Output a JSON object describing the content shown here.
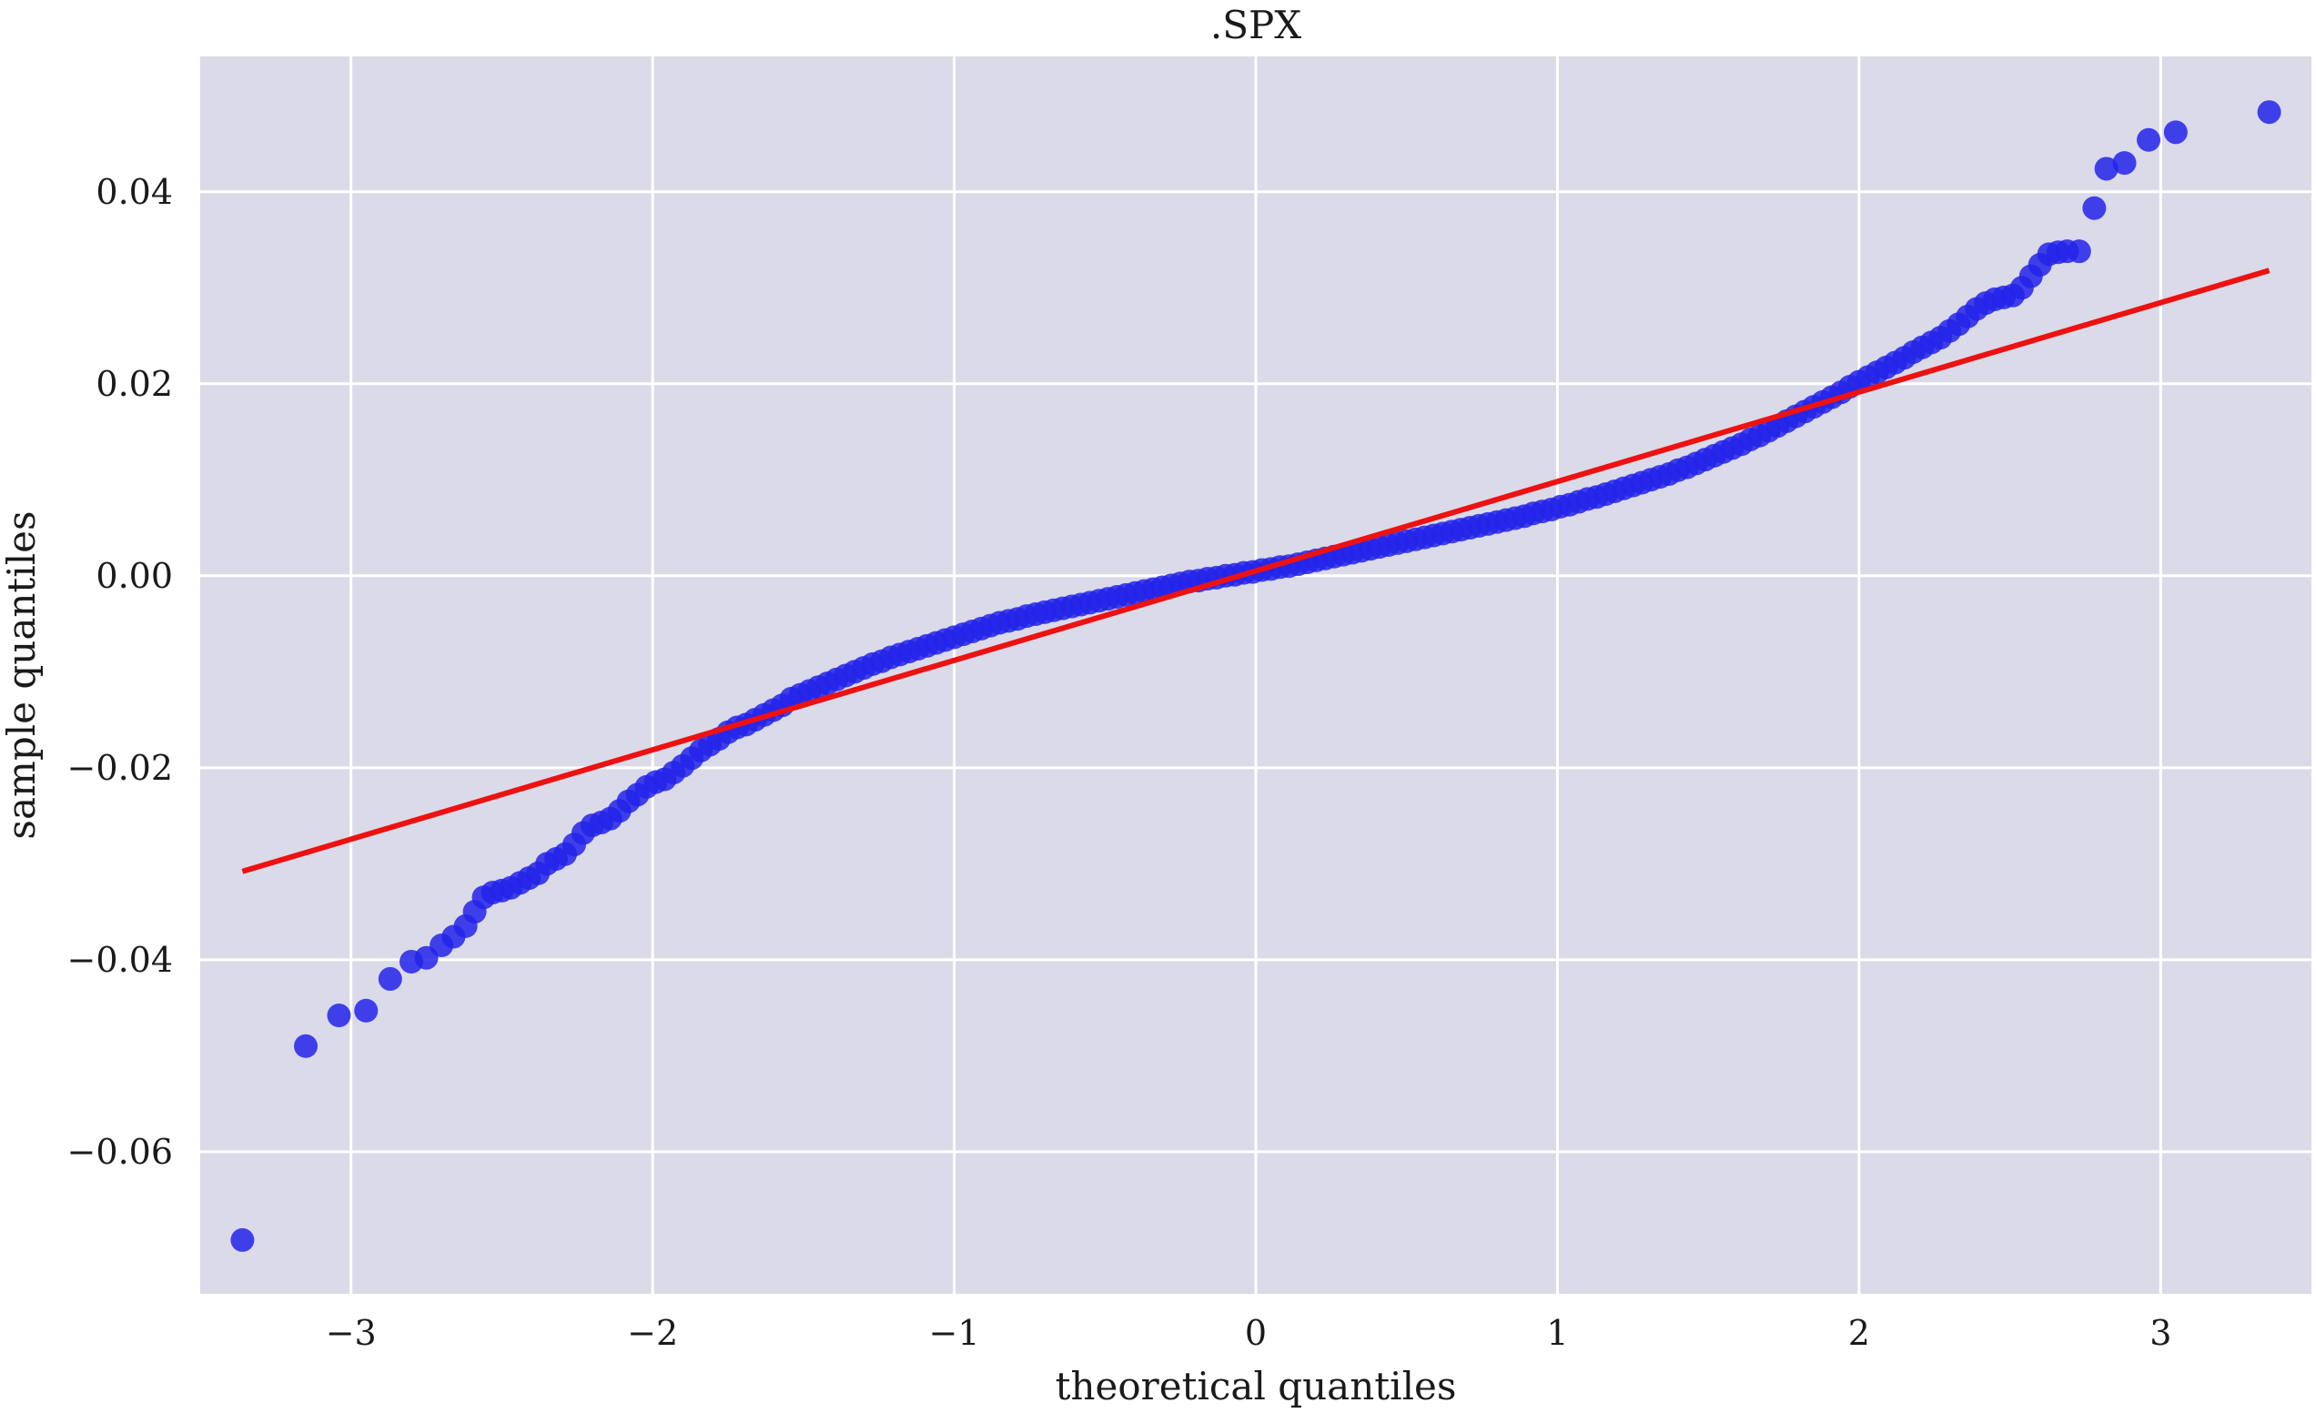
{
  "chart_data": {
    "type": "scatter",
    "title": ".SPX",
    "xlabel": "theoretical quantiles",
    "ylabel": "sample quantiles",
    "xlim": [
      -3.5,
      3.5
    ],
    "ylim": [
      -0.0748,
      0.0541
    ],
    "grid": true,
    "x_ticks": [
      -3,
      -2,
      -1,
      0,
      1,
      2,
      3
    ],
    "x_tick_labels": [
      "−3",
      "−2",
      "−1",
      "0",
      "1",
      "2",
      "3"
    ],
    "y_ticks": [
      -0.06,
      -0.04,
      -0.02,
      0.0,
      0.02,
      0.04
    ],
    "y_tick_labels": [
      "−0.06",
      "−0.04",
      "−0.02",
      "0.00",
      "0.02",
      "0.04"
    ],
    "colors": {
      "background": "#dadae8",
      "grid": "#ffffff",
      "points": "#2323ea",
      "fit_line": "#ee1111"
    },
    "series": [
      {
        "type": "scatter",
        "points": [
          [
            -3.36,
            -0.0692
          ],
          [
            -3.15,
            -0.049
          ],
          [
            -3.04,
            -0.0458
          ],
          [
            -2.95,
            -0.0453
          ],
          [
            -2.87,
            -0.042
          ],
          [
            -2.8,
            -0.0402
          ],
          [
            -2.75,
            -0.0398
          ],
          [
            -2.7,
            -0.0385
          ],
          [
            -2.66,
            -0.0376
          ],
          [
            -2.62,
            -0.0365
          ],
          [
            -2.59,
            -0.035
          ],
          [
            -2.56,
            -0.0335
          ],
          [
            -2.53,
            -0.033
          ],
          [
            -2.5,
            -0.0328
          ],
          [
            -2.47,
            -0.0325
          ],
          [
            -2.44,
            -0.032
          ],
          [
            -2.41,
            -0.0315
          ],
          [
            -2.38,
            -0.031
          ],
          [
            -2.35,
            -0.03
          ],
          [
            -2.32,
            -0.0295
          ],
          [
            -2.29,
            -0.029
          ],
          [
            -2.26,
            -0.028
          ],
          [
            -2.23,
            -0.0268
          ],
          [
            -2.2,
            -0.026
          ],
          [
            -2.17,
            -0.0257
          ],
          [
            -2.14,
            -0.0253
          ],
          [
            -2.11,
            -0.0245
          ],
          [
            -2.08,
            -0.0235
          ],
          [
            -2.05,
            -0.0228
          ],
          [
            -2.02,
            -0.022
          ],
          [
            -1.99,
            -0.0215
          ],
          [
            -1.96,
            -0.0212
          ],
          [
            -1.93,
            -0.0205
          ],
          [
            -1.9,
            -0.0198
          ],
          [
            -1.87,
            -0.019
          ],
          [
            -1.84,
            -0.0182
          ],
          [
            -1.81,
            -0.0176
          ],
          [
            -1.78,
            -0.017
          ],
          [
            -1.75,
            -0.0163
          ],
          [
            -1.72,
            -0.0158
          ],
          [
            -1.69,
            -0.0155
          ],
          [
            -1.66,
            -0.015
          ],
          [
            -1.63,
            -0.0145
          ],
          [
            -1.6,
            -0.014
          ],
          [
            -1.57,
            -0.0135
          ],
          [
            -1.54,
            -0.0128
          ],
          [
            -1.51,
            -0.0124
          ],
          [
            -1.48,
            -0.012
          ],
          [
            -1.45,
            -0.0116
          ],
          [
            -1.42,
            -0.0112
          ],
          [
            -1.39,
            -0.0108
          ],
          [
            -1.36,
            -0.0104
          ],
          [
            -1.33,
            -0.01
          ],
          [
            -1.3,
            -0.0096
          ],
          [
            -1.27,
            -0.0092
          ],
          [
            -1.24,
            -0.0089
          ],
          [
            -1.21,
            -0.0085
          ],
          [
            -1.18,
            -0.0082
          ],
          [
            -1.15,
            -0.0079
          ],
          [
            -1.12,
            -0.0076
          ],
          [
            -1.09,
            -0.0073
          ],
          [
            -1.06,
            -0.007
          ],
          [
            -1.03,
            -0.0067
          ],
          [
            -1.0,
            -0.0064
          ],
          [
            -0.97,
            -0.0061
          ],
          [
            -0.94,
            -0.0058
          ],
          [
            -0.91,
            -0.0055
          ],
          [
            -0.88,
            -0.0052
          ],
          [
            -0.85,
            -0.0049
          ],
          [
            -0.82,
            -0.0047
          ],
          [
            -0.79,
            -0.0045
          ],
          [
            -0.76,
            -0.0042
          ],
          [
            -0.73,
            -0.004
          ],
          [
            -0.7,
            -0.0038
          ],
          [
            -0.67,
            -0.0036
          ],
          [
            -0.64,
            -0.0034
          ],
          [
            -0.61,
            -0.0032
          ],
          [
            -0.58,
            -0.003
          ],
          [
            -0.55,
            -0.0028
          ],
          [
            -0.52,
            -0.0026
          ],
          [
            -0.49,
            -0.0024
          ],
          [
            -0.46,
            -0.0022
          ],
          [
            -0.43,
            -0.002
          ],
          [
            -0.4,
            -0.0018
          ],
          [
            -0.37,
            -0.0016
          ],
          [
            -0.34,
            -0.0014
          ],
          [
            -0.31,
            -0.0012
          ],
          [
            -0.28,
            -0.001
          ],
          [
            -0.25,
            -0.0008
          ],
          [
            -0.22,
            -0.0006
          ],
          [
            -0.19,
            -0.0005
          ],
          [
            -0.16,
            -0.0003
          ],
          [
            -0.13,
            -0.0002
          ],
          [
            -0.1,
            0.0
          ],
          [
            -0.07,
            0.0001
          ],
          [
            -0.04,
            0.0003
          ],
          [
            -0.01,
            0.0004
          ],
          [
            0.02,
            0.0006
          ],
          [
            0.05,
            0.0007
          ],
          [
            0.08,
            0.0009
          ],
          [
            0.11,
            0.001
          ],
          [
            0.14,
            0.0012
          ],
          [
            0.17,
            0.0014
          ],
          [
            0.2,
            0.0016
          ],
          [
            0.23,
            0.0018
          ],
          [
            0.26,
            0.002
          ],
          [
            0.29,
            0.0022
          ],
          [
            0.32,
            0.0024
          ],
          [
            0.35,
            0.0026
          ],
          [
            0.38,
            0.0028
          ],
          [
            0.41,
            0.003
          ],
          [
            0.44,
            0.0032
          ],
          [
            0.47,
            0.0034
          ],
          [
            0.5,
            0.0036
          ],
          [
            0.53,
            0.0038
          ],
          [
            0.56,
            0.004
          ],
          [
            0.59,
            0.0042
          ],
          [
            0.62,
            0.0044
          ],
          [
            0.65,
            0.0046
          ],
          [
            0.68,
            0.0048
          ],
          [
            0.71,
            0.005
          ],
          [
            0.74,
            0.0052
          ],
          [
            0.77,
            0.0054
          ],
          [
            0.8,
            0.0056
          ],
          [
            0.83,
            0.0058
          ],
          [
            0.86,
            0.006
          ],
          [
            0.89,
            0.0062
          ],
          [
            0.92,
            0.0065
          ],
          [
            0.95,
            0.0067
          ],
          [
            0.98,
            0.0069
          ],
          [
            1.01,
            0.0072
          ],
          [
            1.04,
            0.0074
          ],
          [
            1.07,
            0.0077
          ],
          [
            1.1,
            0.008
          ],
          [
            1.13,
            0.0082
          ],
          [
            1.16,
            0.0085
          ],
          [
            1.19,
            0.0088
          ],
          [
            1.22,
            0.0091
          ],
          [
            1.25,
            0.0094
          ],
          [
            1.28,
            0.0097
          ],
          [
            1.31,
            0.01
          ],
          [
            1.34,
            0.0103
          ],
          [
            1.37,
            0.0106
          ],
          [
            1.4,
            0.011
          ],
          [
            1.43,
            0.0113
          ],
          [
            1.46,
            0.0117
          ],
          [
            1.49,
            0.0121
          ],
          [
            1.52,
            0.0125
          ],
          [
            1.55,
            0.0129
          ],
          [
            1.58,
            0.0133
          ],
          [
            1.61,
            0.0137
          ],
          [
            1.64,
            0.0142
          ],
          [
            1.67,
            0.0146
          ],
          [
            1.7,
            0.0151
          ],
          [
            1.73,
            0.0156
          ],
          [
            1.76,
            0.0161
          ],
          [
            1.79,
            0.0166
          ],
          [
            1.82,
            0.0171
          ],
          [
            1.85,
            0.0176
          ],
          [
            1.88,
            0.0181
          ],
          [
            1.91,
            0.0186
          ],
          [
            1.94,
            0.0191
          ],
          [
            1.97,
            0.0197
          ],
          [
            2.0,
            0.0202
          ],
          [
            2.03,
            0.0207
          ],
          [
            2.06,
            0.0212
          ],
          [
            2.09,
            0.0217
          ],
          [
            2.12,
            0.0222
          ],
          [
            2.15,
            0.0227
          ],
          [
            2.18,
            0.0233
          ],
          [
            2.21,
            0.0238
          ],
          [
            2.24,
            0.0243
          ],
          [
            2.27,
            0.0248
          ],
          [
            2.3,
            0.0255
          ],
          [
            2.33,
            0.0262
          ],
          [
            2.36,
            0.027
          ],
          [
            2.39,
            0.0278
          ],
          [
            2.42,
            0.0284
          ],
          [
            2.45,
            0.0288
          ],
          [
            2.48,
            0.029
          ],
          [
            2.51,
            0.0292
          ],
          [
            2.54,
            0.03
          ],
          [
            2.57,
            0.0312
          ],
          [
            2.6,
            0.0324
          ],
          [
            2.63,
            0.0335
          ],
          [
            2.66,
            0.0337
          ],
          [
            2.69,
            0.0338
          ],
          [
            2.73,
            0.0338
          ],
          [
            2.78,
            0.0383
          ],
          [
            2.82,
            0.0424
          ],
          [
            2.88,
            0.043
          ],
          [
            2.96,
            0.0454
          ],
          [
            3.05,
            0.0462
          ],
          [
            3.36,
            0.0483
          ]
        ]
      },
      {
        "type": "line",
        "points": [
          [
            -3.36,
            -0.0308
          ],
          [
            3.36,
            0.0318
          ]
        ]
      }
    ]
  }
}
